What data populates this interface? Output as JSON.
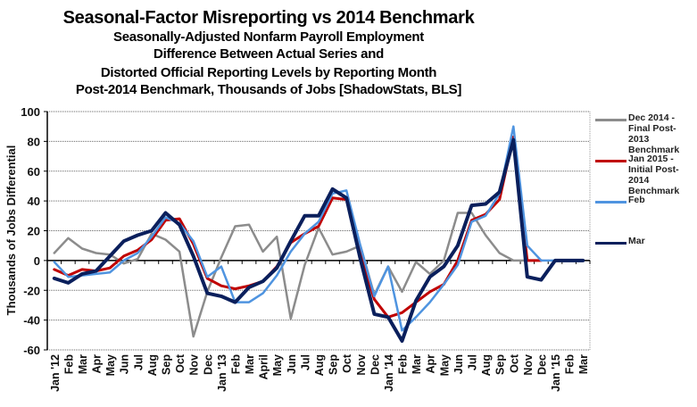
{
  "chart_data": {
    "type": "line",
    "title": "Seasonal-Factor Misreporting vs 2014 Benchmark",
    "subtitle_lines": [
      "Seasonally-Adjusted Nonfarm Payroll Employment",
      "Difference Between Actual Series and",
      "Distorted Official  Reporting Levels by Reporting Month",
      "Post-2014 Benchmark, Thousands of Jobs [ShadowStats, BLS]"
    ],
    "xlabel": "",
    "ylabel": "Thousands of Jobs Differential",
    "ylim": [
      -60,
      100
    ],
    "yticks": [
      100,
      80,
      60,
      40,
      20,
      0,
      -20,
      -40,
      -60
    ],
    "grid": true,
    "legend_position": "right",
    "categories": [
      "Jan '12",
      "Feb",
      "Mar",
      "Apr",
      "May",
      "Jun",
      "Jul",
      "Aug",
      "Sep",
      "Oct",
      "Nov",
      "Dec",
      "Jan '13",
      "Feb",
      "Mar",
      "April",
      "May",
      "Jun",
      "Jul",
      "Aug",
      "Sep",
      "Oct",
      "Nov",
      "Dec",
      "Jan '14",
      "Feb",
      "Mar",
      "Apr",
      "May",
      "Jun",
      "Jul",
      "Aug",
      "Sep",
      "Oct",
      "Nov",
      "Dec",
      "Jan '15",
      "Feb",
      "Mar"
    ],
    "series": [
      {
        "name": "Dec 2014 - Final Post-2013 Benchmark",
        "color": "#8c8c8c",
        "values": [
          5,
          15,
          8,
          5,
          4,
          -2,
          1,
          18,
          14,
          6,
          -51,
          -21,
          2,
          23,
          24,
          6,
          16,
          -39,
          -3,
          22,
          4,
          6,
          10,
          -23,
          -4,
          -21,
          -1,
          -9,
          0,
          32,
          32,
          17,
          5,
          0,
          0,
          null,
          null,
          null,
          null
        ]
      },
      {
        "name": "Jan 2015 - Initial Post-2014 Benchmark",
        "color": "#c00000",
        "values": [
          -6,
          -10,
          -6,
          -7,
          -5,
          3,
          7,
          14,
          27,
          28,
          11,
          -12,
          -17,
          -19,
          -17,
          -14,
          -4,
          12,
          18,
          23,
          42,
          41,
          5,
          -26,
          -38,
          -35,
          -28,
          -21,
          -16,
          0,
          27,
          31,
          41,
          83,
          0,
          0,
          null,
          null,
          null
        ]
      },
      {
        "name": "Feb",
        "color": "#4f94e0",
        "values": [
          -1,
          -11,
          -10,
          -9,
          -8,
          0,
          5,
          16,
          29,
          25,
          13,
          -11,
          -4,
          -28,
          -28,
          -22,
          -10,
          6,
          18,
          26,
          45,
          47,
          10,
          -24,
          -4,
          -47,
          -38,
          -28,
          -16,
          -3,
          26,
          30,
          45,
          90,
          10,
          0,
          0,
          null,
          null
        ]
      },
      {
        "name": "Mar",
        "color": "#0a1f5c",
        "values": [
          -12,
          -15,
          -9,
          -7,
          3,
          13,
          17,
          20,
          32,
          24,
          3,
          -22,
          -24,
          -28,
          -18,
          -14,
          -5,
          13,
          30,
          30,
          48,
          42,
          1,
          -36,
          -38,
          -54,
          -27,
          -11,
          -4,
          10,
          37,
          38,
          46,
          81,
          -11,
          -13,
          0,
          0,
          0
        ]
      }
    ]
  }
}
